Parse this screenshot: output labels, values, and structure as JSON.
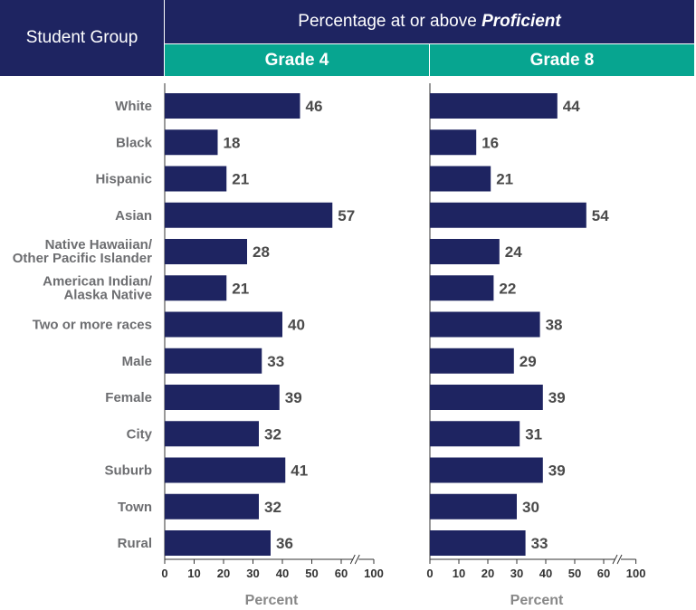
{
  "header": {
    "group_label": "Student Group",
    "title_prefix": "Percentage at or above ",
    "title_emphasis": "Proficient"
  },
  "chart_data": {
    "type": "bar",
    "orientation": "horizontal",
    "categories": [
      "White",
      "Black",
      "Hispanic",
      "Asian",
      "Native Hawaiian/\nOther Pacific Islander",
      "American Indian/\nAlaska Native",
      "Two or more races",
      "Male",
      "Female",
      "City",
      "Suburb",
      "Town",
      "Rural"
    ],
    "series": [
      {
        "name": "Grade 4",
        "values": [
          46,
          18,
          21,
          57,
          28,
          21,
          40,
          33,
          39,
          32,
          41,
          32,
          36
        ]
      },
      {
        "name": "Grade 8",
        "values": [
          44,
          16,
          21,
          54,
          24,
          22,
          38,
          29,
          39,
          31,
          39,
          30,
          33
        ]
      }
    ],
    "xlabel": "Percent",
    "xticks": [
      "0",
      "10",
      "20",
      "30",
      "40",
      "50",
      "60",
      "100"
    ],
    "xlim": [
      0,
      100
    ],
    "axis_break": "between 60 and 100",
    "colors": {
      "bar": "#1e2461",
      "header": "#1e2461",
      "grade_header": "#07a590"
    }
  }
}
